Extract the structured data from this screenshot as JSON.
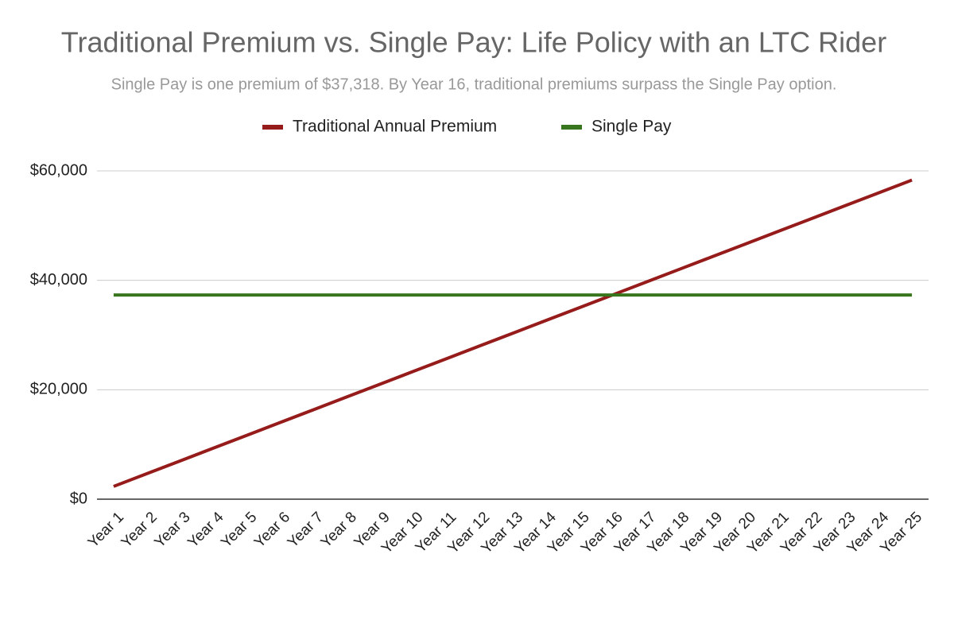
{
  "chart_data": {
    "type": "line",
    "title": "Traditional Premium vs. Single Pay: Life Policy with an LTC Rider",
    "subtitle": "Single Pay is one premium of $37,318. By Year 16, traditional premiums surpass the Single Pay option.",
    "categories": [
      "Year 1",
      "Year 2",
      "Year 3",
      "Year 4",
      "Year 5",
      "Year 6",
      "Year 7",
      "Year 8",
      "Year 9",
      "Year 10",
      "Year 11",
      "Year 12",
      "Year 13",
      "Year 14",
      "Year 15",
      "Year 16",
      "Year 17",
      "Year 18",
      "Year 19",
      "Year 20",
      "Year 21",
      "Year 22",
      "Year 23",
      "Year 24",
      "Year 25"
    ],
    "series": [
      {
        "name": "Traditional Annual Premium",
        "color": "#961b1b",
        "values": [
          2333,
          4666,
          6999,
          9332,
          11665,
          13998,
          16331,
          18664,
          20997,
          23330,
          25663,
          27996,
          30329,
          32662,
          34995,
          37328,
          39661,
          41994,
          44327,
          46660,
          48993,
          51326,
          53659,
          55992,
          58325
        ]
      },
      {
        "name": "Single Pay",
        "color": "#38761d",
        "values": [
          37318,
          37318,
          37318,
          37318,
          37318,
          37318,
          37318,
          37318,
          37318,
          37318,
          37318,
          37318,
          37318,
          37318,
          37318,
          37318,
          37318,
          37318,
          37318,
          37318,
          37318,
          37318,
          37318,
          37318,
          37318
        ]
      }
    ],
    "ylim": [
      0,
      60000
    ],
    "yticks": [
      {
        "value": 0,
        "label": "$0"
      },
      {
        "value": 20000,
        "label": "$20,000"
      },
      {
        "value": 40000,
        "label": "$40,000"
      },
      {
        "value": 60000,
        "label": "$60,000"
      }
    ],
    "grid": true,
    "legend": "top"
  }
}
